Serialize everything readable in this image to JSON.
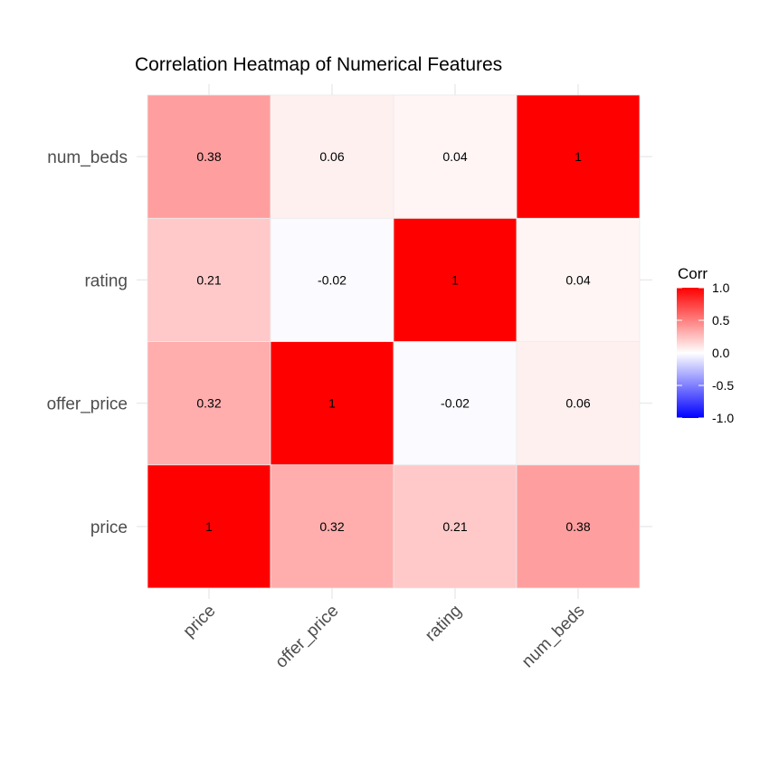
{
  "chart_data": {
    "type": "heatmap",
    "title": "Correlation Heatmap of Numerical Features",
    "x_categories": [
      "price",
      "offer_price",
      "rating",
      "num_beds"
    ],
    "y_categories": [
      "price",
      "offer_price",
      "rating",
      "num_beds"
    ],
    "values": [
      [
        1,
        0.32,
        0.21,
        0.38
      ],
      [
        0.32,
        1,
        -0.02,
        0.06
      ],
      [
        0.21,
        -0.02,
        1,
        0.04
      ],
      [
        0.38,
        0.06,
        0.04,
        1
      ]
    ],
    "cell_labels": [
      [
        "1",
        "0.32",
        "0.21",
        "0.38"
      ],
      [
        "0.32",
        "1",
        "-0.02",
        "0.06"
      ],
      [
        "0.21",
        "-0.02",
        "1",
        "0.04"
      ],
      [
        "0.38",
        "0.06",
        "0.04",
        "1"
      ]
    ],
    "legend": {
      "title": "Corr",
      "placement": "right",
      "range": [
        -1,
        1
      ],
      "ticks": [
        "1.0",
        "0.5",
        "0.0",
        "-0.5",
        "-1.0"
      ],
      "tick_values": [
        1,
        0.5,
        0,
        -0.5,
        -1
      ],
      "colors": {
        "low": "#0000ff",
        "mid": "#ffffff",
        "high": "#ff0000"
      }
    },
    "grid": true
  }
}
